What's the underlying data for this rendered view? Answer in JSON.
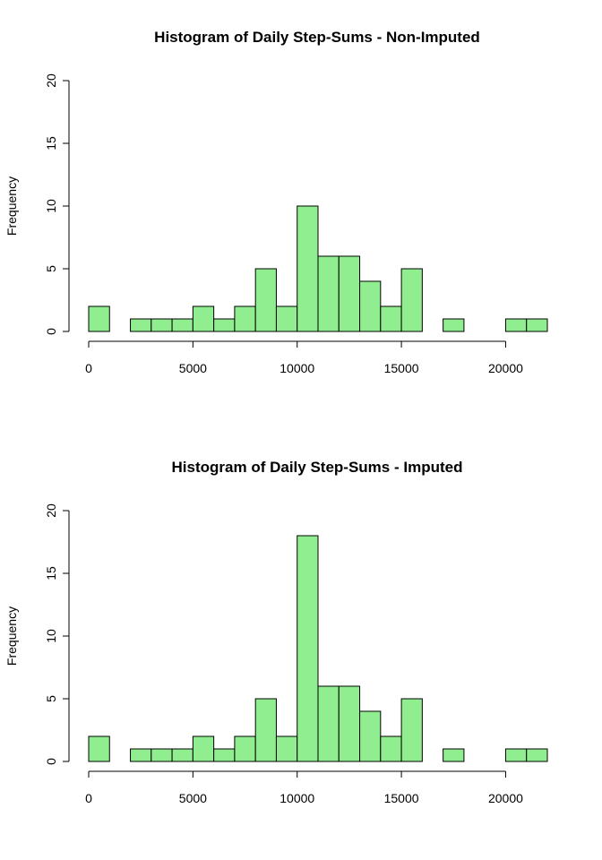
{
  "chart_data": [
    {
      "type": "bar",
      "title": "Histogram of Daily Step-Sums - Non-Imputed",
      "xlabel": "",
      "ylabel": "Frequency",
      "bin_width": 1000,
      "bin_starts": [
        0,
        1000,
        2000,
        3000,
        4000,
        5000,
        6000,
        7000,
        8000,
        9000,
        10000,
        11000,
        12000,
        13000,
        14000,
        15000,
        16000,
        17000,
        18000,
        19000,
        20000,
        21000
      ],
      "values": [
        2,
        0,
        1,
        1,
        1,
        2,
        1,
        2,
        5,
        2,
        10,
        6,
        6,
        4,
        2,
        5,
        0,
        1,
        0,
        0,
        1,
        1
      ],
      "xlim": [
        0,
        22000
      ],
      "ylim": [
        0,
        20
      ],
      "x_ticks": [
        0,
        5000,
        10000,
        15000,
        20000
      ],
      "x_tick_labels": [
        "0",
        "5000",
        "10000",
        "15000",
        "20000"
      ],
      "y_ticks": [
        0,
        5,
        10,
        15,
        20
      ],
      "y_tick_labels": [
        "0",
        "5",
        "10",
        "15",
        "20"
      ],
      "bar_color": "#90ee90",
      "grid": false
    },
    {
      "type": "bar",
      "title": "Histogram of Daily Step-Sums - Imputed",
      "xlabel": "",
      "ylabel": "Frequency",
      "bin_width": 1000,
      "bin_starts": [
        0,
        1000,
        2000,
        3000,
        4000,
        5000,
        6000,
        7000,
        8000,
        9000,
        10000,
        11000,
        12000,
        13000,
        14000,
        15000,
        16000,
        17000,
        18000,
        19000,
        20000,
        21000
      ],
      "values": [
        2,
        0,
        1,
        1,
        1,
        2,
        1,
        2,
        5,
        2,
        18,
        6,
        6,
        4,
        2,
        5,
        0,
        1,
        0,
        0,
        1,
        1
      ],
      "xlim": [
        0,
        22000
      ],
      "ylim": [
        0,
        20
      ],
      "x_ticks": [
        0,
        5000,
        10000,
        15000,
        20000
      ],
      "x_tick_labels": [
        "0",
        "5000",
        "10000",
        "15000",
        "20000"
      ],
      "y_ticks": [
        0,
        5,
        10,
        15,
        20
      ],
      "y_tick_labels": [
        "0",
        "5",
        "10",
        "15",
        "20"
      ],
      "bar_color": "#90ee90",
      "grid": false
    }
  ]
}
